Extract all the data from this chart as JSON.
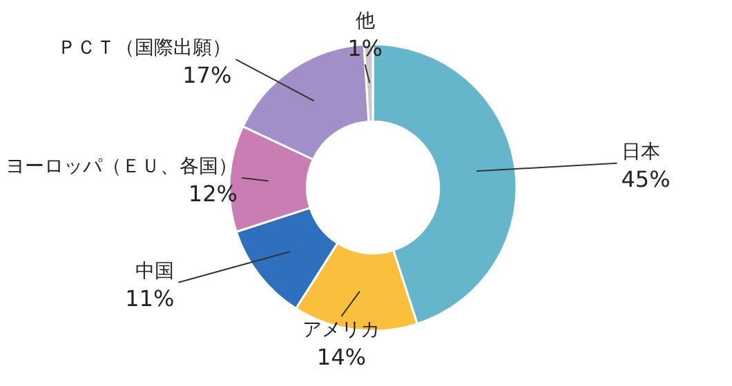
{
  "chart_data": {
    "type": "donut",
    "categories": [
      "日本",
      "アメリカ",
      "中国",
      "ヨーロッパ（ＥＵ、各国）",
      "ＰＣＴ（国際出願）",
      "他"
    ],
    "values": [
      45,
      14,
      11,
      12,
      17,
      1
    ],
    "colors": [
      "#66b6cb",
      "#f9bf3d",
      "#2f70be",
      "#c97db2",
      "#a38fc7",
      "#c9c9d1"
    ],
    "value_labels": [
      "45%",
      "14%",
      "11%",
      "12%",
      "17%",
      "1%"
    ]
  }
}
